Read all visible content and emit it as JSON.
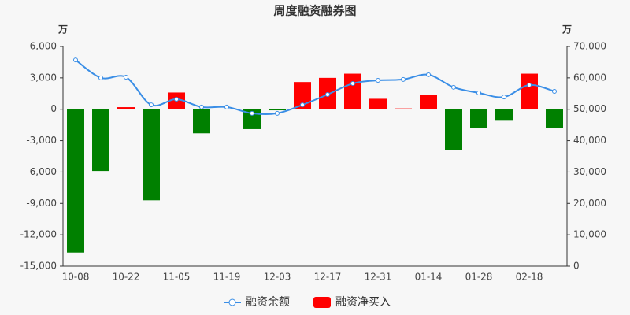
{
  "chart_data": {
    "type": "bar-line",
    "title": "周度融资融券图",
    "y_unit": "万",
    "y2_unit": "万",
    "categories": [
      "10-08",
      null,
      "10-22",
      null,
      "11-05",
      null,
      "11-19",
      null,
      "12-03",
      null,
      "12-17",
      null,
      "12-31",
      null,
      "01-14",
      null,
      "01-28",
      null,
      "02-18",
      null
    ],
    "series": [
      {
        "name": "融资余额",
        "type": "line",
        "axis": "y2",
        "color": "#3a8ee6",
        "values": [
          65700,
          60000,
          60200,
          51400,
          53200,
          50700,
          50700,
          48700,
          48700,
          51400,
          54700,
          58200,
          59200,
          59500,
          61000,
          57000,
          55200,
          53900,
          57700,
          55700
        ]
      },
      {
        "name": "融资净买入",
        "type": "bar",
        "axis": "y",
        "color": "#ff0000",
        "negative_color": "#008000",
        "values": [
          -13700,
          -5900,
          200,
          -8700,
          1600,
          -2300,
          50,
          -1900,
          -100,
          2600,
          3000,
          3400,
          1000,
          80,
          1400,
          -3900,
          -1800,
          -1100,
          3400,
          -1800
        ]
      }
    ],
    "ylim": [
      -15000,
      6000
    ],
    "yticks": [
      {
        "value": -15000,
        "label": "-15,000"
      },
      {
        "value": -12000,
        "label": "-12,000"
      },
      {
        "value": -9000,
        "label": "-9,000"
      },
      {
        "value": -6000,
        "label": "-6,000"
      },
      {
        "value": -3000,
        "label": "-3,000"
      },
      0,
      {
        "value": 3000,
        "label": "3,000"
      },
      {
        "value": 6000,
        "label": "6,000"
      }
    ],
    "y2lim": [
      0,
      70000
    ],
    "y2ticks": [
      0,
      {
        "value": 10000,
        "label": "10,000"
      },
      {
        "value": 20000,
        "label": "20,000"
      },
      {
        "value": 30000,
        "label": "30,000"
      },
      {
        "value": 40000,
        "label": "40,000"
      },
      {
        "value": 50000,
        "label": "50,000"
      },
      {
        "value": 60000,
        "label": "60,000"
      },
      {
        "value": 70000,
        "label": "70,000"
      }
    ]
  }
}
